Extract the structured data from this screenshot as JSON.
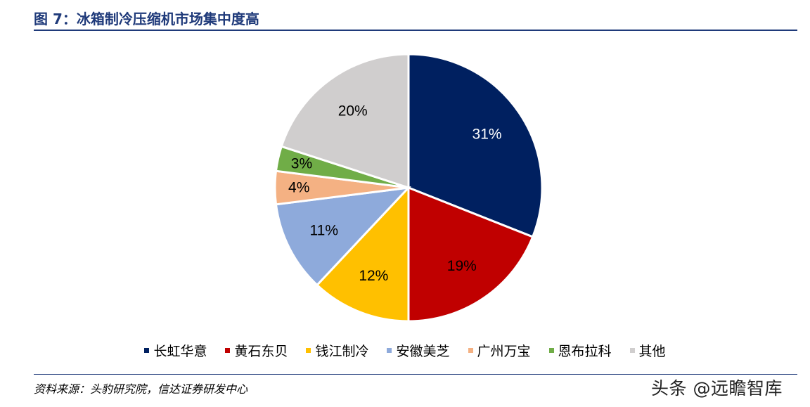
{
  "title": "图 7：冰箱制冷压缩机市场集中度高",
  "source": "资料来源：头豹研究院，信达证券研发中心",
  "watermark": "头条 @远瞻智库",
  "chart_data": {
    "type": "pie",
    "start": "12 o'clock, clockwise",
    "legend_position": "bottom",
    "slices": [
      {
        "label": "长虹华意",
        "value": 31,
        "display": "31%",
        "color": "#002060",
        "text_color": "#ffffff"
      },
      {
        "label": "黄石东贝",
        "value": 19,
        "display": "19%",
        "color": "#c00000",
        "text_color": "#000000"
      },
      {
        "label": "钱江制冷",
        "value": 12,
        "display": "12%",
        "color": "#ffc000",
        "text_color": "#000000"
      },
      {
        "label": "安徽美芝",
        "value": 11,
        "display": "11%",
        "color": "#8eaadb",
        "text_color": "#000000"
      },
      {
        "label": "广州万宝",
        "value": 4,
        "display": "4%",
        "color": "#f4b183",
        "text_color": "#000000"
      },
      {
        "label": "恩布拉科",
        "value": 3,
        "display": "3%",
        "color": "#70ad47",
        "text_color": "#000000"
      },
      {
        "label": "其他",
        "value": 20,
        "display": "20%",
        "color": "#d0cece",
        "text_color": "#000000"
      }
    ]
  }
}
